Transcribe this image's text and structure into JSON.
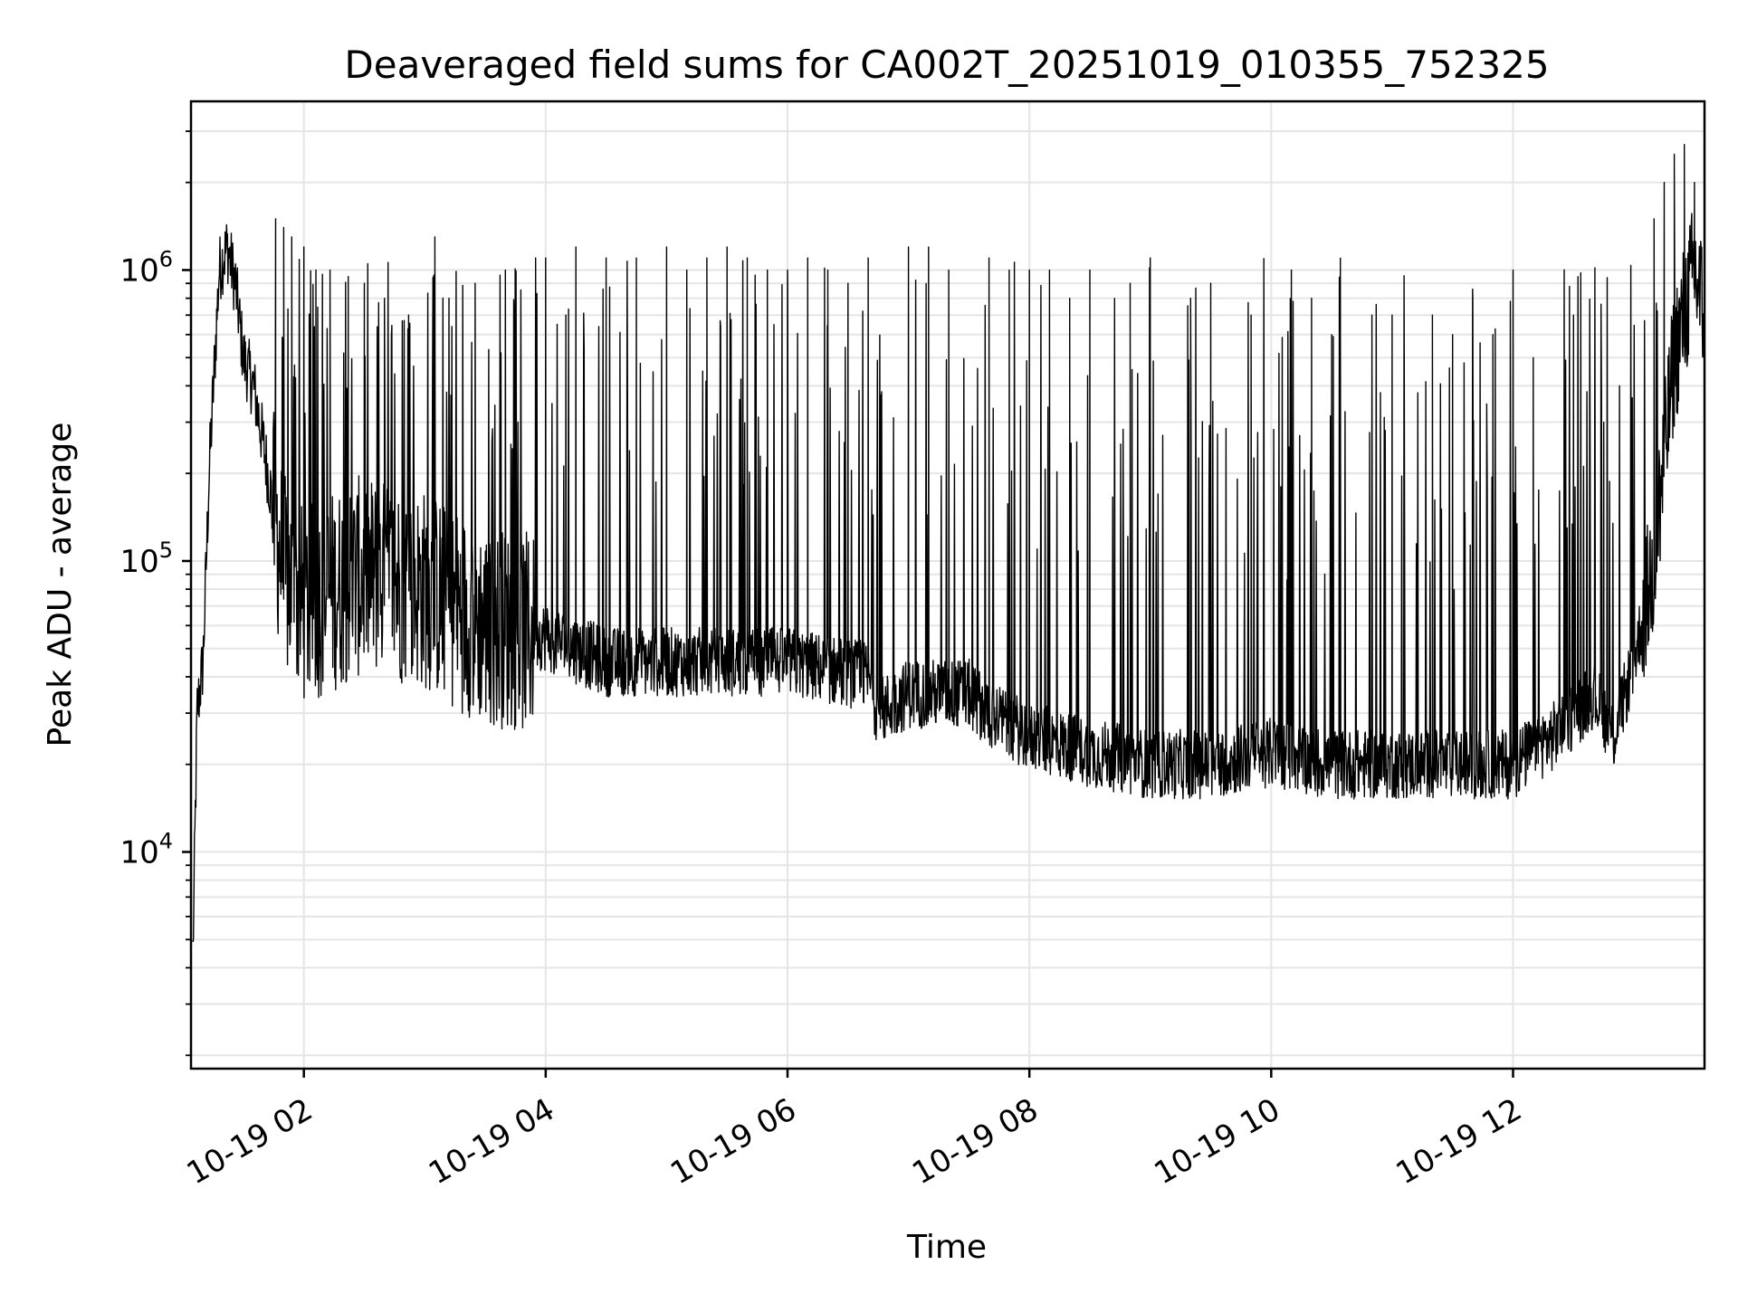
{
  "chart_data": {
    "type": "line",
    "title": "Deaveraged field sums for CA002T_20251019_010355_752325",
    "xlabel": "Time",
    "ylabel": "Peak ADU - average",
    "y_scale": "log",
    "ylim": [
      1800,
      3800000
    ],
    "xlim": [
      "2025-10-19T01:04",
      "2025-10-19T13:35"
    ],
    "grid": true,
    "x_ticks": [
      {
        "label": "10-19 02",
        "t": "2025-10-19T02:00"
      },
      {
        "label": "10-19 04",
        "t": "2025-10-19T04:00"
      },
      {
        "label": "10-19 06",
        "t": "2025-10-19T06:00"
      },
      {
        "label": "10-19 08",
        "t": "2025-10-19T08:00"
      },
      {
        "label": "10-19 10",
        "t": "2025-10-19T10:00"
      },
      {
        "label": "10-19 12",
        "t": "2025-10-19T12:00"
      }
    ],
    "y_ticks": [
      {
        "base": "10",
        "exp": "4",
        "value": 10000
      },
      {
        "base": "10",
        "exp": "5",
        "value": 100000
      },
      {
        "base": "10",
        "exp": "6",
        "value": 1000000
      }
    ],
    "series": [
      {
        "color": "#000000",
        "trend": {
          "x": [
            "2025-10-19T01:05",
            "2025-10-19T01:07",
            "2025-10-19T01:10",
            "2025-10-19T01:13",
            "2025-10-19T01:18",
            "2025-10-19T01:22",
            "2025-10-19T01:26",
            "2025-10-19T01:30",
            "2025-10-19T01:35",
            "2025-10-19T01:40",
            "2025-10-19T01:45",
            "2025-10-19T01:50",
            "2025-10-19T02:00",
            "2025-10-19T02:30",
            "2025-10-19T03:00",
            "2025-10-19T03:30",
            "2025-10-19T04:00",
            "2025-10-19T04:30",
            "2025-10-19T05:00",
            "2025-10-19T05:30",
            "2025-10-19T06:00",
            "2025-10-19T06:40",
            "2025-10-19T06:45",
            "2025-10-19T07:00",
            "2025-10-19T07:30",
            "2025-10-19T07:40",
            "2025-10-19T08:00",
            "2025-10-19T08:30",
            "2025-10-19T09:00",
            "2025-10-19T09:30",
            "2025-10-19T10:00",
            "2025-10-19T10:30",
            "2025-10-19T11:00",
            "2025-10-19T11:30",
            "2025-10-19T12:00",
            "2025-10-19T12:20",
            "2025-10-19T12:40",
            "2025-10-19T12:50",
            "2025-10-19T13:00",
            "2025-10-19T13:10",
            "2025-10-19T13:20",
            "2025-10-19T13:30",
            "2025-10-19T13:35"
          ],
          "y": [
            4500,
            30000,
            45000,
            200000,
            1000000,
            1200000,
            900000,
            500000,
            400000,
            250000,
            150000,
            90000,
            70000,
            90000,
            80000,
            60000,
            55000,
            45000,
            45000,
            45000,
            45000,
            40000,
            30000,
            35000,
            35000,
            30000,
            25000,
            22000,
            20000,
            20000,
            22000,
            20000,
            20000,
            20000,
            20000,
            25000,
            35000,
            25000,
            45000,
            100000,
            500000,
            1000000,
            700000
          ]
        },
        "spikes": {
          "x": [
            "2025-10-19T01:46",
            "2025-10-19T01:50",
            "2025-10-19T01:54",
            "2025-10-19T02:00",
            "2025-10-19T02:06",
            "2025-10-19T02:13",
            "2025-10-19T02:22",
            "2025-10-19T02:30",
            "2025-10-19T02:40",
            "2025-10-19T02:52",
            "2025-10-19T03:05",
            "2025-10-19T03:12",
            "2025-10-19T03:25",
            "2025-10-19T03:40",
            "2025-10-19T03:55",
            "2025-10-19T04:00",
            "2025-10-19T04:10",
            "2025-10-19T04:15",
            "2025-10-19T04:30",
            "2025-10-19T04:45",
            "2025-10-19T05:00",
            "2025-10-19T05:10",
            "2025-10-19T05:20",
            "2025-10-19T05:30",
            "2025-10-19T05:40",
            "2025-10-19T05:50",
            "2025-10-19T06:00",
            "2025-10-19T06:10",
            "2025-10-19T06:20",
            "2025-10-19T06:30",
            "2025-10-19T06:40",
            "2025-10-19T07:00",
            "2025-10-19T07:10",
            "2025-10-19T07:20",
            "2025-10-19T07:40",
            "2025-10-19T07:50",
            "2025-10-19T08:00",
            "2025-10-19T08:10",
            "2025-10-19T08:20",
            "2025-10-19T08:30",
            "2025-10-19T08:50",
            "2025-10-19T09:00",
            "2025-10-19T09:20",
            "2025-10-19T09:30",
            "2025-10-19T09:50",
            "2025-10-19T10:10",
            "2025-10-19T10:20",
            "2025-10-19T10:30",
            "2025-10-19T10:50",
            "2025-10-19T11:00",
            "2025-10-19T11:20",
            "2025-10-19T11:30",
            "2025-10-19T11:40",
            "2025-10-19T11:50",
            "2025-10-19T12:00",
            "2025-10-19T12:10",
            "2025-10-19T12:30",
            "2025-10-19T12:45",
            "2025-10-19T13:10",
            "2025-10-19T13:15",
            "2025-10-19T13:20",
            "2025-10-19T13:25",
            "2025-10-19T13:30"
          ],
          "y": [
            1500000,
            1400000,
            1300000,
            1200000,
            1000000,
            1000000,
            950000,
            900000,
            800000,
            700000,
            1300000,
            800000,
            900000,
            1000000,
            1100000,
            1100000,
            700000,
            1200000,
            1100000,
            1100000,
            1200000,
            1000000,
            1100000,
            1200000,
            1100000,
            1000000,
            1000000,
            1100000,
            1000000,
            900000,
            1100000,
            1200000,
            1200000,
            1000000,
            1100000,
            1000000,
            1000000,
            1000000,
            800000,
            1000000,
            900000,
            1100000,
            800000,
            900000,
            700000,
            1000000,
            800000,
            600000,
            700000,
            700000,
            700000,
            600000,
            800000,
            600000,
            1000000,
            500000,
            700000,
            300000,
            1500000,
            2000000,
            2500000,
            2700000,
            2000000
          ]
        }
      }
    ]
  }
}
